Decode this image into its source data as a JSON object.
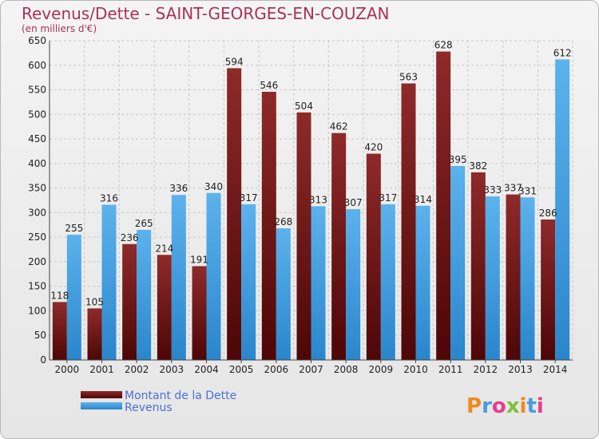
{
  "chart_data": {
    "type": "bar",
    "title": "Revenus/Dette - SAINT-GEORGES-EN-COUZAN",
    "subtitle": "(en milliers d'€)",
    "categories": [
      "2000",
      "2001",
      "2002",
      "2003",
      "2004",
      "2005",
      "2006",
      "2007",
      "2008",
      "2009",
      "2010",
      "2011",
      "2012",
      "2013",
      "2014"
    ],
    "series": [
      {
        "name": "Montant de la Dette",
        "color": "#8b1a1a",
        "values": [
          118,
          105,
          236,
          214,
          191,
          594,
          546,
          504,
          462,
          420,
          563,
          628,
          382,
          337,
          286
        ]
      },
      {
        "name": "Revenus",
        "color": "#3d9fe0",
        "values": [
          255,
          316,
          265,
          336,
          340,
          317,
          268,
          313,
          307,
          317,
          314,
          395,
          333,
          331,
          612
        ]
      }
    ],
    "value_labels": [
      [
        "118",
        "105",
        "236",
        "214",
        "191",
        "594",
        "546",
        "504",
        "462",
        "420",
        "563",
        "628",
        "382",
        "337",
        "286"
      ],
      [
        "255",
        "316",
        "265",
        "336",
        "340",
        "317",
        "268",
        "313",
        "307",
        "317",
        "314",
        "395",
        "333",
        "331",
        "612"
      ]
    ],
    "ylim": [
      0,
      650
    ],
    "yticks": [
      0,
      50,
      100,
      150,
      200,
      250,
      300,
      350,
      400,
      450,
      500,
      550,
      600,
      650
    ],
    "grid": true,
    "legend_position": "bottom-left"
  },
  "logo": "Proxiti"
}
